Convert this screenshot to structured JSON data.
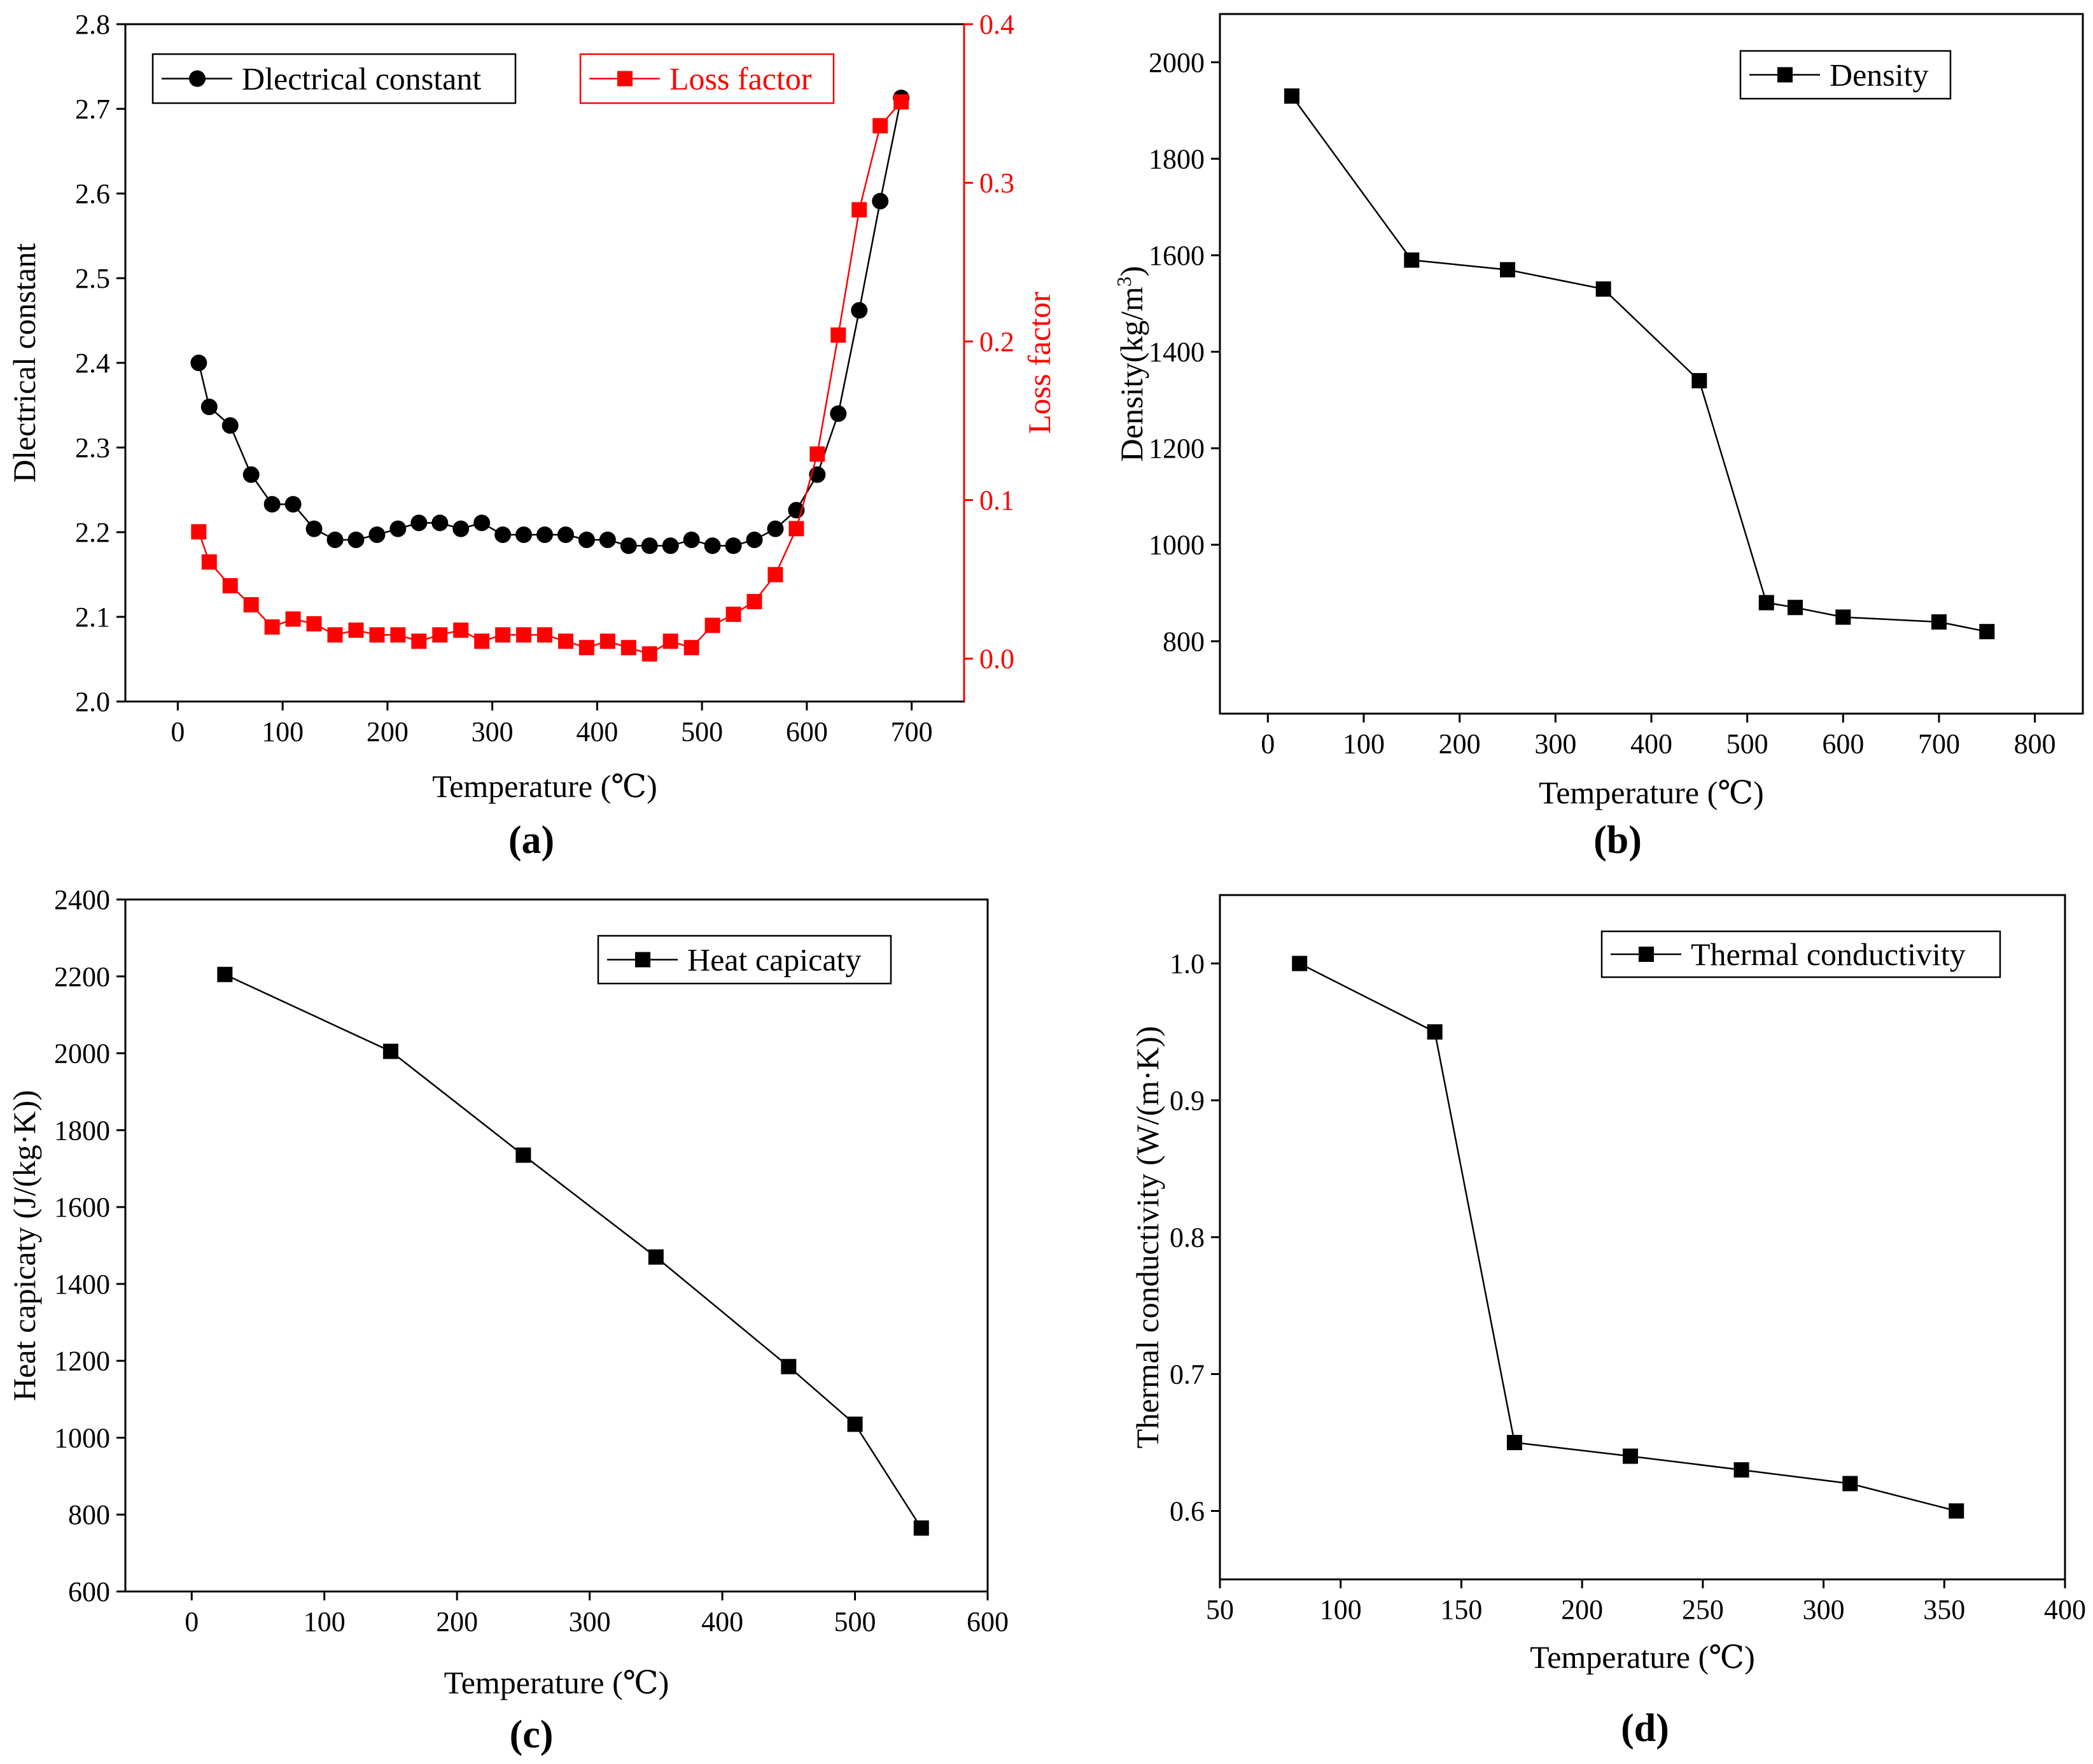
{
  "chart_data": [
    {
      "id": "a",
      "type": "scatter",
      "panel_label": "(a)",
      "xlabel": "Temperature (℃)",
      "ylabel": "Dlectrical constant",
      "y2label": "Loss factor",
      "xlim": [
        -50,
        750
      ],
      "xticks": [
        0,
        100,
        200,
        300,
        400,
        500,
        600,
        700
      ],
      "ylim": [
        2.0,
        2.8
      ],
      "yticks": [
        2.0,
        2.1,
        2.2,
        2.3,
        2.4,
        2.5,
        2.6,
        2.7,
        2.8
      ],
      "y2lim": [
        -0.027,
        0.4
      ],
      "y2ticks": [
        0.0,
        0.1,
        0.2,
        0.3,
        0.4
      ],
      "legend": "top, left and right",
      "series": [
        {
          "name": "Dlectrical constant",
          "axis": "left",
          "color": "#000000",
          "marker": "circle",
          "x": [
            20,
            30,
            50,
            70,
            90,
            110,
            130,
            150,
            170,
            190,
            210,
            230,
            250,
            270,
            290,
            310,
            330,
            350,
            370,
            390,
            410,
            430,
            450,
            470,
            490,
            510,
            530,
            550,
            570,
            590,
            610,
            630,
            650,
            670,
            690
          ],
          "y": [
            2.4,
            2.348,
            2.326,
            2.268,
            2.233,
            2.233,
            2.204,
            2.191,
            2.191,
            2.197,
            2.204,
            2.211,
            2.211,
            2.204,
            2.211,
            2.197,
            2.197,
            2.197,
            2.197,
            2.191,
            2.191,
            2.184,
            2.184,
            2.184,
            2.191,
            2.184,
            2.184,
            2.191,
            2.204,
            2.226,
            2.268,
            2.34,
            2.462,
            2.591,
            2.713
          ]
        },
        {
          "name": "Loss factor",
          "axis": "right",
          "color": "#ff0000",
          "marker": "square",
          "x": [
            20,
            30,
            50,
            70,
            90,
            110,
            130,
            150,
            170,
            190,
            210,
            230,
            250,
            270,
            290,
            310,
            330,
            350,
            370,
            390,
            410,
            430,
            450,
            470,
            490,
            510,
            530,
            550,
            570,
            590,
            610,
            630,
            650,
            670,
            690
          ],
          "y": [
            0.08,
            0.061,
            0.046,
            0.034,
            0.02,
            0.025,
            0.022,
            0.015,
            0.018,
            0.015,
            0.015,
            0.011,
            0.015,
            0.018,
            0.011,
            0.015,
            0.015,
            0.015,
            0.011,
            0.007,
            0.011,
            0.007,
            0.003,
            0.011,
            0.007,
            0.021,
            0.028,
            0.036,
            0.053,
            0.082,
            0.129,
            0.204,
            0.283,
            0.336,
            0.351
          ]
        }
      ]
    },
    {
      "id": "b",
      "type": "line",
      "panel_label": "(b)",
      "xlabel": "Temperature (℃)",
      "ylabel_main": "Density(kg/m",
      "ylabel_sup": "3",
      "ylabel_end": ")",
      "xlim": [
        -50,
        850
      ],
      "xticks": [
        0,
        100,
        200,
        300,
        400,
        500,
        600,
        700,
        800
      ],
      "ylim": [
        650,
        2100
      ],
      "yticks": [
        800,
        1000,
        1200,
        1400,
        1600,
        1800,
        2000
      ],
      "legend": "top-right",
      "series": [
        {
          "name": "Density",
          "color": "#000000",
          "marker": "square",
          "x": [
            25,
            150,
            250,
            350,
            450,
            520,
            550,
            600,
            700,
            750
          ],
          "y": [
            1930,
            1590,
            1570,
            1530,
            1340,
            880,
            870,
            850,
            840,
            820
          ]
        }
      ]
    },
    {
      "id": "c",
      "type": "line",
      "panel_label": "(c)",
      "xlabel": "Temperature (℃)",
      "ylabel": "Heat capicaty (J/(kg·K))",
      "xlim": [
        -50,
        600
      ],
      "xticks": [
        0,
        100,
        200,
        300,
        400,
        500,
        600
      ],
      "ylim": [
        600,
        2400
      ],
      "yticks": [
        600,
        800,
        1000,
        1200,
        1400,
        1600,
        1800,
        2000,
        2200,
        2400
      ],
      "legend": "top-right",
      "series": [
        {
          "name": "Heat capicaty",
          "color": "#000000",
          "marker": "square",
          "x": [
            25,
            150,
            250,
            350,
            450,
            500,
            550
          ],
          "y": [
            2205,
            2005,
            1735,
            1470,
            1185,
            1035,
            765
          ]
        }
      ]
    },
    {
      "id": "d",
      "type": "line",
      "panel_label": "(d)",
      "xlabel": "Temperature (℃)",
      "ylabel": "Thermal conductivity (W/(m·K))",
      "xlim": [
        50,
        400
      ],
      "xticks": [
        50,
        100,
        150,
        200,
        250,
        300,
        350,
        400
      ],
      "ylim": [
        0.55,
        1.05
      ],
      "yticks": [
        0.6,
        0.7,
        0.8,
        0.9,
        1.0
      ],
      "legend": "top-right",
      "series": [
        {
          "name": "Thermal conductivity",
          "color": "#000000",
          "marker": "square",
          "x": [
            83,
            139,
            172,
            220,
            266,
            311,
            355
          ],
          "y": [
            1.0,
            0.95,
            0.65,
            0.64,
            0.63,
            0.62,
            0.6
          ]
        }
      ]
    }
  ]
}
